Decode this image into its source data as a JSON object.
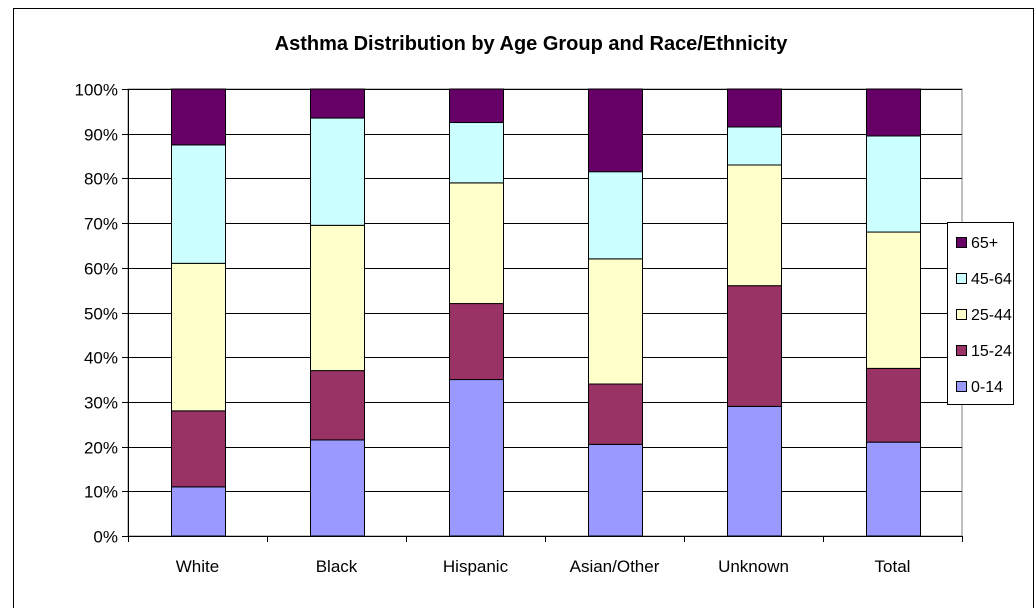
{
  "chart_data": {
    "type": "bar",
    "stacked": true,
    "percent_stacked": true,
    "title": "Asthma Distribution by Age Group and Race/Ethnicity",
    "xlabel": "",
    "ylabel": "",
    "ylim": [
      0,
      100
    ],
    "y_ticks": [
      "0%",
      "10%",
      "20%",
      "30%",
      "40%",
      "50%",
      "60%",
      "70%",
      "80%",
      "90%",
      "100%"
    ],
    "categories": [
      "White",
      "Black",
      "Hispanic",
      "Asian/Other",
      "Unknown",
      "Total"
    ],
    "series": [
      {
        "name": "0-14",
        "color": "#9999ff",
        "values": [
          11,
          21.5,
          35,
          20.5,
          29,
          21
        ]
      },
      {
        "name": "15-24",
        "color": "#993366",
        "values": [
          17,
          15.5,
          17,
          13.5,
          27,
          16.5
        ]
      },
      {
        "name": "25-44",
        "color": "#ffffcc",
        "values": [
          33,
          32.5,
          27,
          28,
          27,
          30.5
        ]
      },
      {
        "name": "45-64",
        "color": "#ccffff",
        "values": [
          26.5,
          24,
          13.5,
          19.5,
          8.5,
          21.5
        ]
      },
      {
        "name": "65+",
        "color": "#660066",
        "values": [
          12.5,
          6.5,
          7.5,
          18.5,
          8.5,
          10.5
        ]
      }
    ],
    "legend_order": [
      "65+",
      "45-64",
      "25-44",
      "15-24",
      "0-14"
    ],
    "legend_position": "right",
    "grid": true
  }
}
